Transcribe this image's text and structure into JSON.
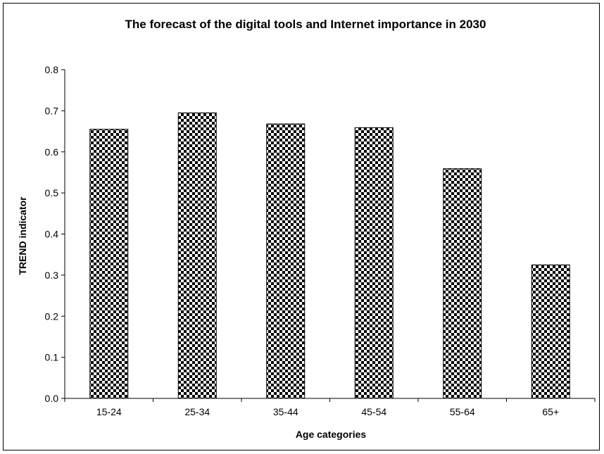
{
  "chart_data": {
    "type": "bar",
    "title": "The forecast of the digital tools and Internet importance in 2030",
    "xlabel": "Age categories",
    "ylabel": "TREND indicator",
    "categories": [
      "15-24",
      "25-34",
      "35-44",
      "45-54",
      "55-64",
      "65+"
    ],
    "values": [
      0.655,
      0.695,
      0.668,
      0.659,
      0.559,
      0.325
    ],
    "ylim": [
      0,
      0.8
    ],
    "yticks": [
      "0.0",
      "0.1",
      "0.2",
      "0.3",
      "0.4",
      "0.5",
      "0.6",
      "0.7",
      "0.8"
    ],
    "grid": false,
    "legend": "none",
    "bar_fill": "checkerboard",
    "colors": {
      "bar_dark": "#000000",
      "bar_light": "#ffffff",
      "axis": "#000000"
    }
  }
}
